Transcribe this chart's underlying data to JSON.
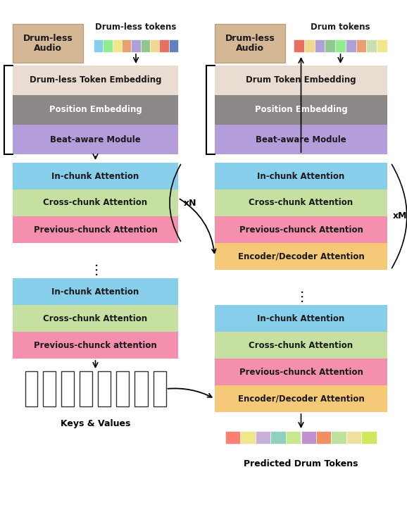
{
  "fig_width": 5.78,
  "fig_height": 7.24,
  "bg_color": "#ffffff",
  "colors": {
    "drumless_audio_box": "#d4b896",
    "token_embedding": "#e8ddd0",
    "position_embedding": "#8c8888",
    "beat_aware": "#b39ddb",
    "in_chunk": "#87ceeb",
    "cross_chunk": "#c5e0a0",
    "prev_chunk": "#f48fae",
    "enc_dec": "#f5c978",
    "token_colors_enc": [
      "#87ceeb",
      "#90ee90",
      "#f0e68c",
      "#e8a070",
      "#b0a0d8",
      "#90c890",
      "#f0d890",
      "#e87060",
      "#6080c0"
    ],
    "token_colors_dec": [
      "#e87060",
      "#f0d890",
      "#b0a0d8",
      "#90c890",
      "#90ee90",
      "#b0a0d8",
      "#e8a070",
      "#c8e0b0",
      "#f0e68c"
    ],
    "pred_token_colors": [
      "#fa8072",
      "#f0e68c",
      "#c8b0d8",
      "#90d0c0",
      "#c8e890",
      "#c090d0",
      "#f09060",
      "#c0e0a0",
      "#f0e0a0",
      "#d0e860"
    ]
  },
  "enc_label_audio": "Drum-less\nAudio",
  "enc_label_tokens": "Drum-less tokens",
  "enc_label_embed": "Drum-less Token Embedding",
  "enc_label_pos": "Position Embedding",
  "enc_label_beat": "Beat-aware Module",
  "enc_label_in1": "In-chunk Attention",
  "enc_label_cross1": "Cross-chunk Attention",
  "enc_label_prev1": "Previous-chunck Attention",
  "enc_label_xN": "xN",
  "enc_label_in2": "In-chunk Attention",
  "enc_label_cross2": "Cross-chunk Attention",
  "enc_label_prev2": "Previous-chunck attention",
  "enc_label_keys": "Keys & Values",
  "dec_label_audio": "Drum-less\nAudio",
  "dec_label_tokens": "Drum tokens",
  "dec_label_embed": "Drum Token Embedding",
  "dec_label_pos": "Position Embedding",
  "dec_label_beat": "Beat-aware Module",
  "dec_label_in1": "In-chunk Attention",
  "dec_label_cross1": "Cross-chunk Attention",
  "dec_label_prev1": "Previous-chunck Attention",
  "dec_label_encdec1": "Encoder/Decoder Attention",
  "dec_label_xM": "xM",
  "dec_label_in2": "In-chunk Attention",
  "dec_label_cross2": "Cross-chunk Attention",
  "dec_label_prev2": "Previous-chunck Attention",
  "dec_label_encdec2": "Encoder/Decoder Attention",
  "dec_label_pred": "Predicted Drum Tokens"
}
